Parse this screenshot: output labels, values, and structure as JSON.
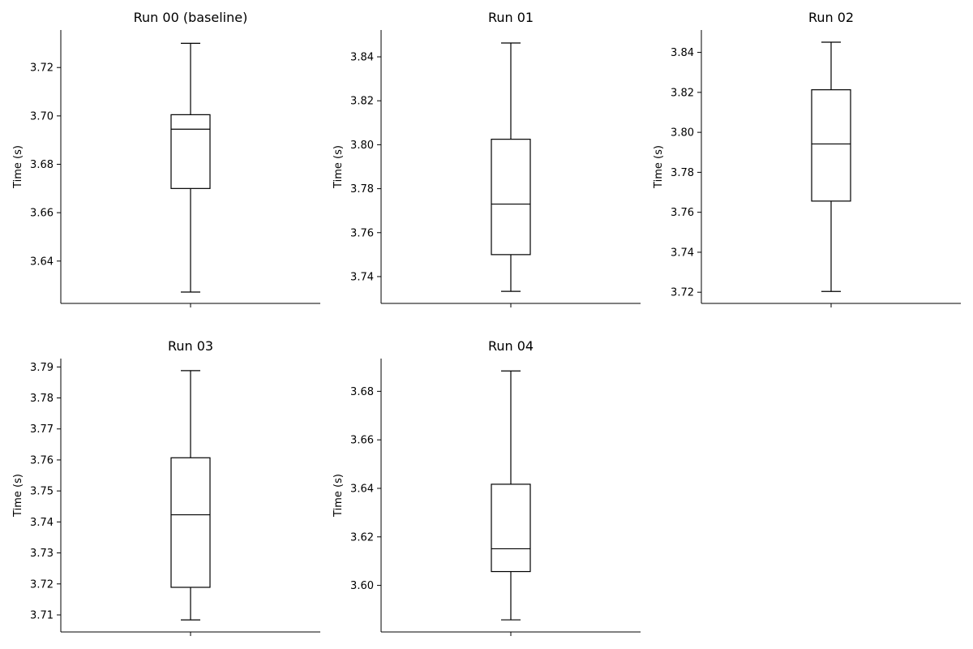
{
  "chart_data": [
    {
      "type": "box",
      "title": "Run 00 (baseline)",
      "ylabel": "Time (s)",
      "ylim": [
        3.6225,
        3.7355
      ],
      "yticks": [
        3.64,
        3.66,
        3.68,
        3.7,
        3.72
      ],
      "ytick_labels": [
        "3.64",
        "3.66",
        "3.68",
        "3.70",
        "3.72"
      ],
      "box": {
        "whisker_low": 3.6272,
        "q1": 3.67,
        "median": 3.6945,
        "q3": 3.7005,
        "whisker_high": 3.73
      }
    },
    {
      "type": "box",
      "title": "Run 01",
      "ylabel": "Time (s)",
      "ylim": [
        3.7278,
        3.8522
      ],
      "yticks": [
        3.74,
        3.76,
        3.78,
        3.8,
        3.82,
        3.84
      ],
      "ytick_labels": [
        "3.74",
        "3.76",
        "3.78",
        "3.80",
        "3.82",
        "3.84"
      ],
      "box": {
        "whisker_low": 3.7333,
        "q1": 3.75,
        "median": 3.773,
        "q3": 3.8025,
        "whisker_high": 3.8463
      }
    },
    {
      "type": "box",
      "title": "Run 02",
      "ylabel": "Time (s)",
      "ylim": [
        3.7144,
        3.8512
      ],
      "yticks": [
        3.72,
        3.74,
        3.76,
        3.78,
        3.8,
        3.82,
        3.84
      ],
      "ytick_labels": [
        "3.72",
        "3.74",
        "3.76",
        "3.78",
        "3.80",
        "3.82",
        "3.84"
      ],
      "box": {
        "whisker_low": 3.7204,
        "q1": 3.7656,
        "median": 3.7942,
        "q3": 3.8213,
        "whisker_high": 3.8451
      }
    },
    {
      "type": "box",
      "title": "Run 03",
      "ylabel": "Time (s)",
      "ylim": [
        3.7045,
        3.7927
      ],
      "yticks": [
        3.71,
        3.72,
        3.73,
        3.74,
        3.75,
        3.76,
        3.77,
        3.78,
        3.79
      ],
      "ytick_labels": [
        "3.71",
        "3.72",
        "3.73",
        "3.74",
        "3.75",
        "3.76",
        "3.77",
        "3.78",
        "3.79"
      ],
      "box": {
        "whisker_low": 3.7084,
        "q1": 3.7189,
        "median": 3.7423,
        "q3": 3.7607,
        "whisker_high": 3.7888
      }
    },
    {
      "type": "box",
      "title": "Run 04",
      "ylabel": "Time (s)",
      "ylim": [
        3.5808,
        3.6935
      ],
      "yticks": [
        3.6,
        3.62,
        3.64,
        3.66,
        3.68
      ],
      "ytick_labels": [
        "3.60",
        "3.62",
        "3.64",
        "3.66",
        "3.68"
      ],
      "box": {
        "whisker_low": 3.5858,
        "q1": 3.6057,
        "median": 3.6151,
        "q3": 3.6417,
        "whisker_high": 3.6884
      }
    }
  ]
}
